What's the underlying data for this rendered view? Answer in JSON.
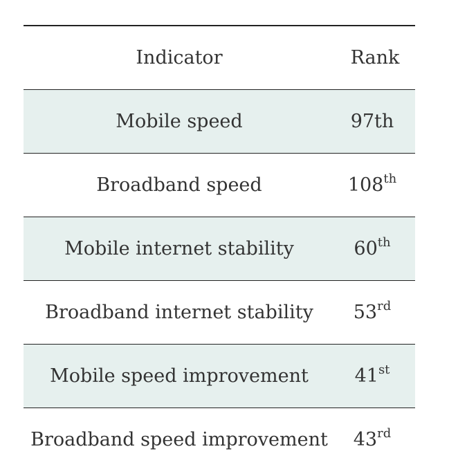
{
  "table": {
    "headers": {
      "indicator": "Indicator",
      "rank": "Rank"
    },
    "rows": [
      {
        "indicator": "Mobile speed",
        "rank_number": "97",
        "rank_suffix": "th",
        "suffix_style": "inline"
      },
      {
        "indicator": "Broadband speed",
        "rank_number": "108",
        "rank_suffix": "th",
        "suffix_style": "superscript"
      },
      {
        "indicator": "Mobile internet stability",
        "rank_number": "60",
        "rank_suffix": "th",
        "suffix_style": "superscript"
      },
      {
        "indicator": "Broadband internet stability",
        "rank_number": "53",
        "rank_suffix": "rd",
        "suffix_style": "superscript"
      },
      {
        "indicator": "Mobile speed improvement",
        "rank_number": "41",
        "rank_suffix": "st",
        "suffix_style": "superscript"
      },
      {
        "indicator": "Broadband speed improvement",
        "rank_number": "43",
        "rank_suffix": "rd",
        "suffix_style": "superscript"
      }
    ],
    "colors": {
      "stripe": "#e6f0ee",
      "rule": "#222222",
      "text": "#333333"
    }
  }
}
